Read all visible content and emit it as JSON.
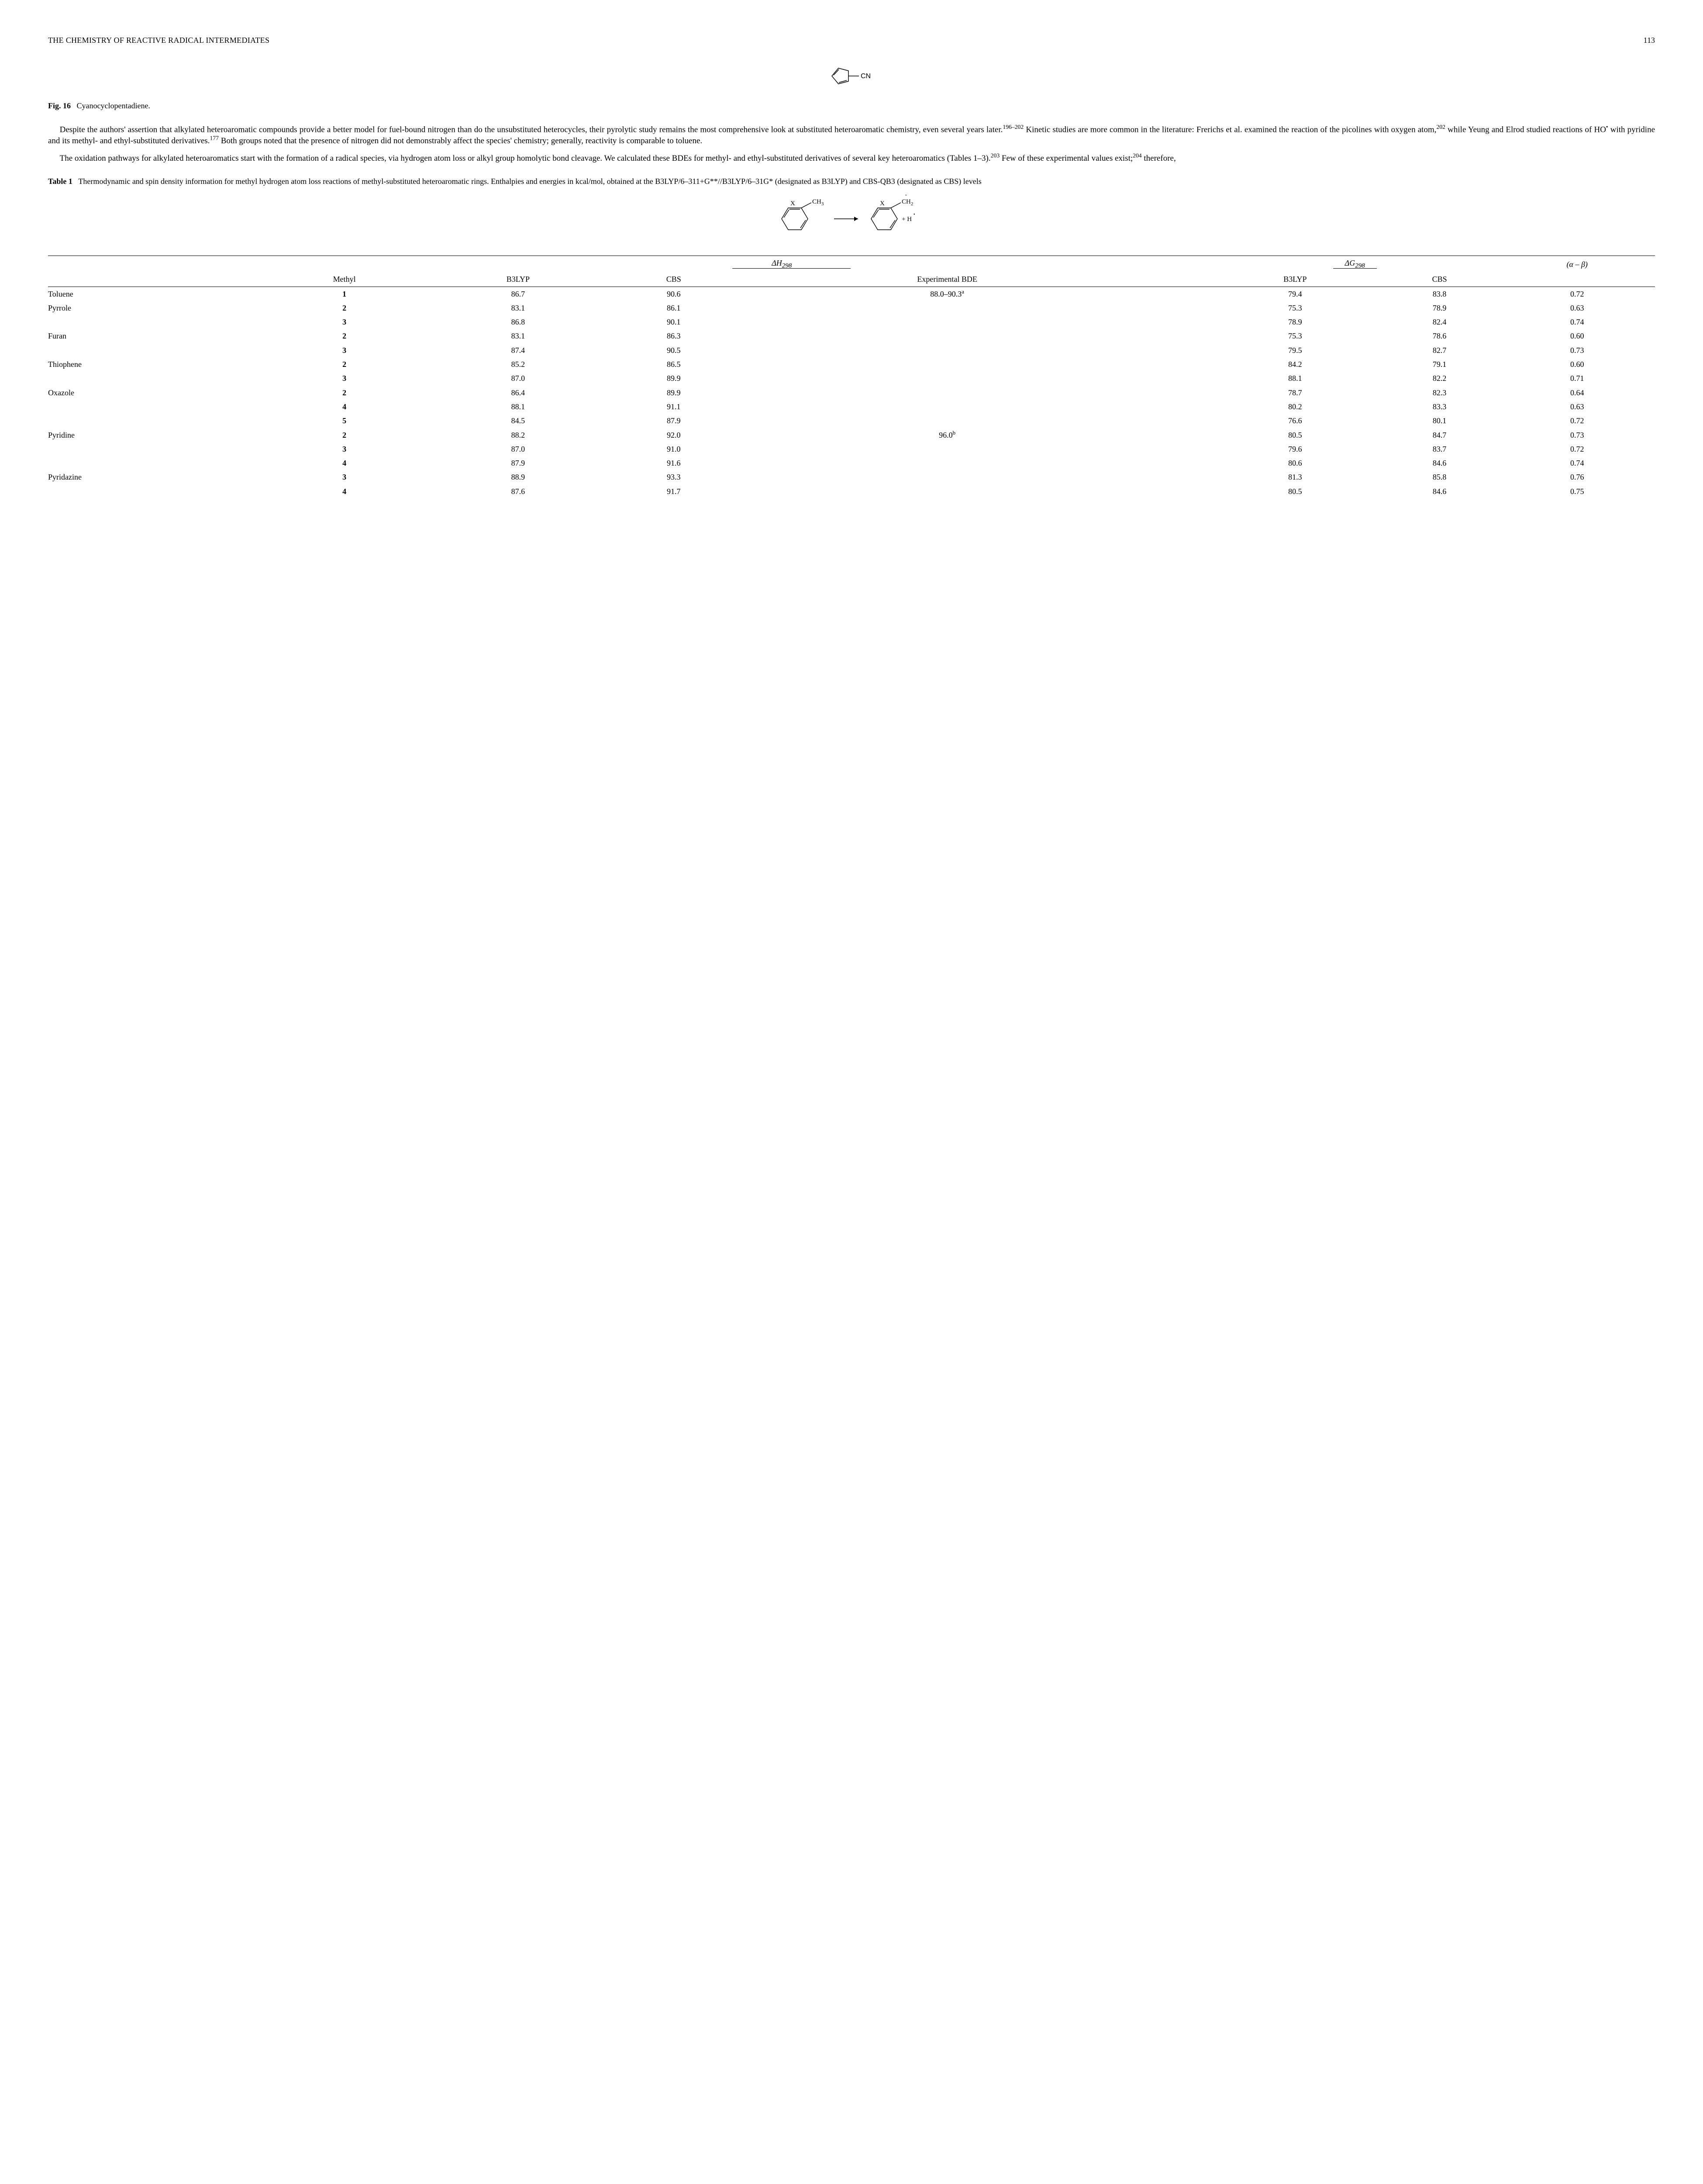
{
  "header": {
    "running_head": "THE CHEMISTRY OF REACTIVE RADICAL INTERMEDIATES",
    "page_number": "113"
  },
  "figure16": {
    "cn_label": "CN",
    "caption_lead": "Fig. 16",
    "caption_text": "Cyanocyclopentadiene."
  },
  "paragraph1": {
    "s1a": "Despite the authors' assertion that alkylated heteroaromatic compounds provide a better model for fuel-bound nitrogen than do the unsubstituted heterocycles, their pyrolytic study remains the most comprehensive look at substituted heteroaromatic chemistry, even several years later.",
    "s1_sup": "196–202",
    "s1b": " Kinetic studies are more common in the literature: Frerichs et al. examined the reaction of the picolines with oxygen atom,",
    "s2_sup": "202",
    "s2a": " while Yeung and Elrod studied reactions of HO",
    "s2_dot": "•",
    "s2b": " with pyridine and its methyl- and ethyl-substituted derivatives.",
    "s3_sup": "177",
    "s3": " Both groups noted that the presence of nitrogen did not demonstrably affect the species' chemistry; generally, reactivity is comparable to toluene."
  },
  "paragraph2": {
    "s1": "The oxidation pathways for alkylated heteroaromatics start with the formation of a radical species, via hydrogen atom loss or alkyl group homolytic bond cleavage. We calculated these BDEs for methyl- and ethyl-substituted derivatives of several key heteroaromatics (Tables 1–3).",
    "sup1": "203",
    "s2": " Few of these experimental values exist;",
    "sup2": "204",
    "s3": " therefore,"
  },
  "table1": {
    "caption_lead": "Table 1",
    "caption_text": "Thermodynamic and spin density information for methyl hydrogen atom loss reactions of methyl-substituted heteroaromatic rings. Enthalpies and energies in kcal/mol, obtained at the B3LYP/6–311+G**//B3LYP/6–31G* (designated as B3LYP) and CBS-QB3 (designated as CBS) levels",
    "scheme": {
      "X": "X",
      "CH3": "CH",
      "CH3_sub": "3",
      "CH2": "CH",
      "CH2_sub": "2",
      "plus_H": "+ H",
      "dot": "•"
    },
    "header": {
      "dH": "ΔH",
      "dH_sub": "298",
      "dG": "ΔG",
      "dG_sub": "298",
      "ab": "(α – β)",
      "methyl": "Methyl",
      "b3lyp": "B3LYP",
      "cbs": "CBS",
      "exp": "Experimental BDE"
    },
    "rows": [
      {
        "name": "Toluene",
        "methyl": "1",
        "dh_b3": "86.7",
        "dh_cbs": "90.6",
        "exp": "88.0–90.3",
        "exp_sup": "a",
        "dg_b3": "79.4",
        "dg_cbs": "83.8",
        "ab": "0.72"
      },
      {
        "name": "Pyrrole",
        "methyl": "2",
        "dh_b3": "83.1",
        "dh_cbs": "86.1",
        "exp": "",
        "exp_sup": "",
        "dg_b3": "75.3",
        "dg_cbs": "78.9",
        "ab": "0.63"
      },
      {
        "name": "",
        "methyl": "3",
        "dh_b3": "86.8",
        "dh_cbs": "90.1",
        "exp": "",
        "exp_sup": "",
        "dg_b3": "78.9",
        "dg_cbs": "82.4",
        "ab": "0.74"
      },
      {
        "name": "Furan",
        "methyl": "2",
        "dh_b3": "83.1",
        "dh_cbs": "86.3",
        "exp": "",
        "exp_sup": "",
        "dg_b3": "75.3",
        "dg_cbs": "78.6",
        "ab": "0.60"
      },
      {
        "name": "",
        "methyl": "3",
        "dh_b3": "87.4",
        "dh_cbs": "90.5",
        "exp": "",
        "exp_sup": "",
        "dg_b3": "79.5",
        "dg_cbs": "82.7",
        "ab": "0.73"
      },
      {
        "name": "Thiophene",
        "methyl": "2",
        "dh_b3": "85.2",
        "dh_cbs": "86.5",
        "exp": "",
        "exp_sup": "",
        "dg_b3": "84.2",
        "dg_cbs": "79.1",
        "ab": "0.60"
      },
      {
        "name": "",
        "methyl": "3",
        "dh_b3": "87.0",
        "dh_cbs": "89.9",
        "exp": "",
        "exp_sup": "",
        "dg_b3": "88.1",
        "dg_cbs": "82.2",
        "ab": "0.71"
      },
      {
        "name": "Oxazole",
        "methyl": "2",
        "dh_b3": "86.4",
        "dh_cbs": "89.9",
        "exp": "",
        "exp_sup": "",
        "dg_b3": "78.7",
        "dg_cbs": "82.3",
        "ab": "0.64"
      },
      {
        "name": "",
        "methyl": "4",
        "dh_b3": "88.1",
        "dh_cbs": "91.1",
        "exp": "",
        "exp_sup": "",
        "dg_b3": "80.2",
        "dg_cbs": "83.3",
        "ab": "0.63"
      },
      {
        "name": "",
        "methyl": "5",
        "dh_b3": "84.5",
        "dh_cbs": "87.9",
        "exp": "",
        "exp_sup": "",
        "dg_b3": "76.6",
        "dg_cbs": "80.1",
        "ab": "0.72"
      },
      {
        "name": "Pyridine",
        "methyl": "2",
        "dh_b3": "88.2",
        "dh_cbs": "92.0",
        "exp": "96.0",
        "exp_sup": "b",
        "dg_b3": "80.5",
        "dg_cbs": "84.7",
        "ab": "0.73"
      },
      {
        "name": "",
        "methyl": "3",
        "dh_b3": "87.0",
        "dh_cbs": "91.0",
        "exp": "",
        "exp_sup": "",
        "dg_b3": "79.6",
        "dg_cbs": "83.7",
        "ab": "0.72"
      },
      {
        "name": "",
        "methyl": "4",
        "dh_b3": "87.9",
        "dh_cbs": "91.6",
        "exp": "",
        "exp_sup": "",
        "dg_b3": "80.6",
        "dg_cbs": "84.6",
        "ab": "0.74"
      },
      {
        "name": "Pyridazine",
        "methyl": "3",
        "dh_b3": "88.9",
        "dh_cbs": "93.3",
        "exp": "",
        "exp_sup": "",
        "dg_b3": "81.3",
        "dg_cbs": "85.8",
        "ab": "0.76"
      },
      {
        "name": "",
        "methyl": "4",
        "dh_b3": "87.6",
        "dh_cbs": "91.7",
        "exp": "",
        "exp_sup": "",
        "dg_b3": "80.5",
        "dg_cbs": "84.6",
        "ab": "0.75"
      }
    ]
  }
}
